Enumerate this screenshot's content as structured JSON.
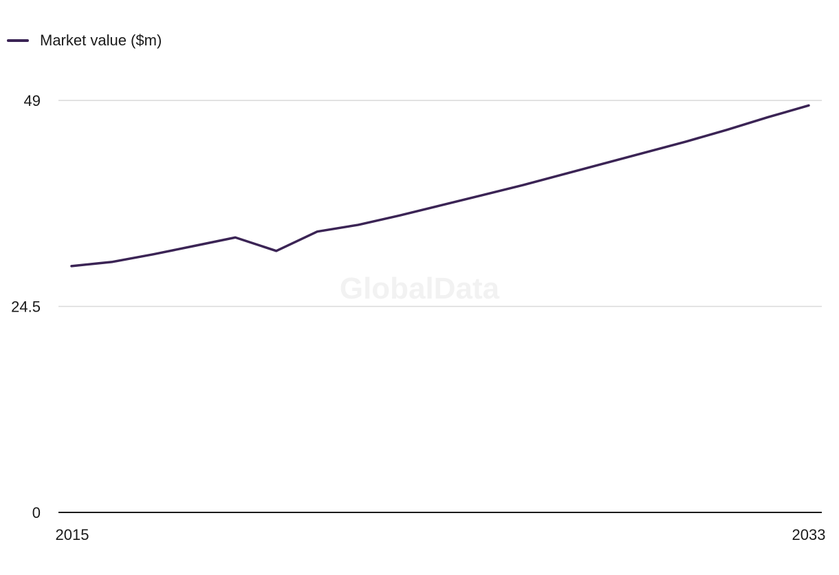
{
  "chart_data": {
    "type": "line",
    "title": "",
    "xlabel": "",
    "ylabel": "",
    "x": [
      2015,
      2016,
      2017,
      2018,
      2019,
      2020,
      2021,
      2022,
      2023,
      2024,
      2025,
      2026,
      2027,
      2028,
      2029,
      2030,
      2031,
      2032,
      2033
    ],
    "series": [
      {
        "name": "Market value ($m)",
        "color": "#3b2455",
        "values": [
          29.3,
          29.8,
          30.7,
          31.7,
          32.7,
          31.1,
          33.4,
          34.2,
          35.3,
          36.5,
          37.7,
          38.9,
          40.2,
          41.5,
          42.8,
          44.1,
          45.5,
          47.0,
          48.4
        ]
      }
    ],
    "ylim": [
      0,
      49
    ],
    "xlim": [
      2015,
      2033
    ],
    "y_ticks": [
      "0",
      "24.5",
      "49"
    ],
    "x_ticks": [
      "2015",
      "2033"
    ],
    "grid": true,
    "legend_position": "top-left",
    "watermark": "GlobalData"
  }
}
